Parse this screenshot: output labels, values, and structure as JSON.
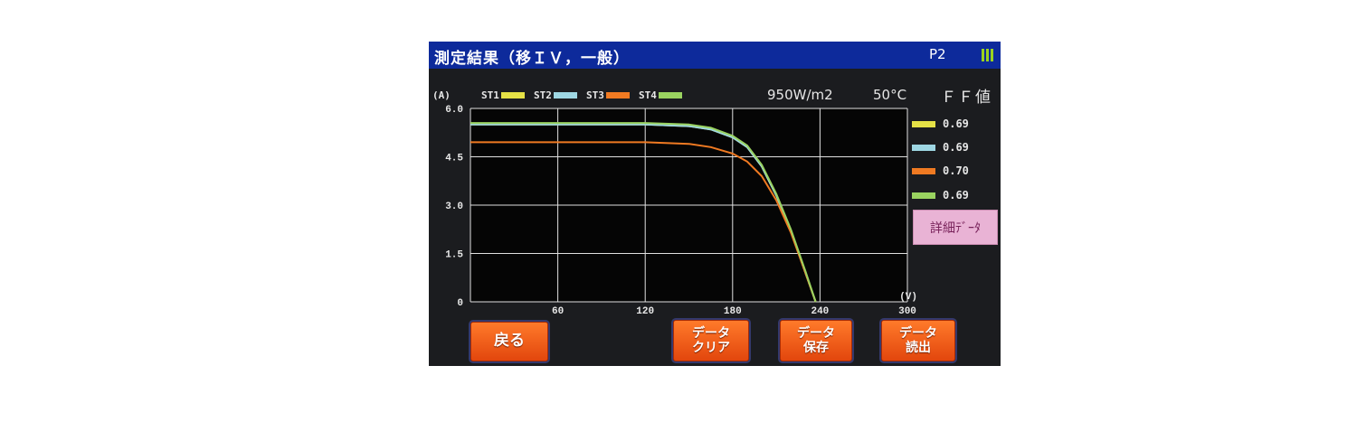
{
  "title": "測定結果（移ＩＶ，一般）",
  "page": "P2",
  "battery_color": "#9ad21f",
  "unit_current": "(A)",
  "unit_voltage": "(V)",
  "legend": [
    {
      "label": "ST1",
      "color": "#e5e146"
    },
    {
      "label": "ST2",
      "color": "#9ed7e3"
    },
    {
      "label": "ST3",
      "color": "#f07a22"
    },
    {
      "label": "ST4",
      "color": "#9ad360"
    }
  ],
  "irradiance": "950W/m2",
  "temperature": "50°C",
  "ff_title": "ＦＦ値",
  "ff_values": [
    "0.69",
    "0.69",
    "0.70",
    "0.69"
  ],
  "detail_button": "詳細ﾃﾞｰﾀ",
  "buttons": {
    "back": "戻る",
    "clear": [
      "データ",
      "クリア"
    ],
    "save": [
      "データ",
      "保存"
    ],
    "load": [
      "データ",
      "読出"
    ]
  },
  "chart_data": {
    "type": "line",
    "xlabel": "(V)",
    "ylabel": "(A)",
    "xlim": [
      0,
      300
    ],
    "ylim": [
      0,
      6.0
    ],
    "x_ticks": [
      "60",
      "120",
      "180",
      "240",
      "300"
    ],
    "y_ticks": [
      "6.0",
      "4.5",
      "3.0",
      "1.5",
      "0"
    ],
    "grid": true,
    "series": [
      {
        "name": "ST1",
        "color": "#e5e146",
        "x": [
          0,
          60,
          120,
          150,
          165,
          180,
          190,
          200,
          210,
          220,
          230,
          237
        ],
        "y": [
          5.5,
          5.5,
          5.5,
          5.45,
          5.35,
          5.1,
          4.8,
          4.2,
          3.3,
          2.2,
          0.9,
          0
        ]
      },
      {
        "name": "ST2",
        "color": "#9ed7e3",
        "x": [
          0,
          60,
          120,
          150,
          165,
          180,
          190,
          200,
          210,
          220,
          230,
          237
        ],
        "y": [
          5.5,
          5.5,
          5.5,
          5.45,
          5.35,
          5.1,
          4.8,
          4.2,
          3.3,
          2.2,
          0.9,
          0
        ]
      },
      {
        "name": "ST3",
        "color": "#f07a22",
        "x": [
          0,
          60,
          120,
          150,
          165,
          180,
          190,
          200,
          210,
          220,
          230,
          237
        ],
        "y": [
          4.95,
          4.95,
          4.95,
          4.9,
          4.8,
          4.6,
          4.35,
          3.9,
          3.15,
          2.15,
          0.9,
          0
        ]
      },
      {
        "name": "ST4",
        "color": "#9ad360",
        "x": [
          0,
          60,
          120,
          150,
          165,
          180,
          190,
          200,
          210,
          220,
          230,
          237
        ],
        "y": [
          5.55,
          5.55,
          5.55,
          5.5,
          5.4,
          5.15,
          4.85,
          4.25,
          3.35,
          2.25,
          0.95,
          0
        ]
      }
    ]
  }
}
